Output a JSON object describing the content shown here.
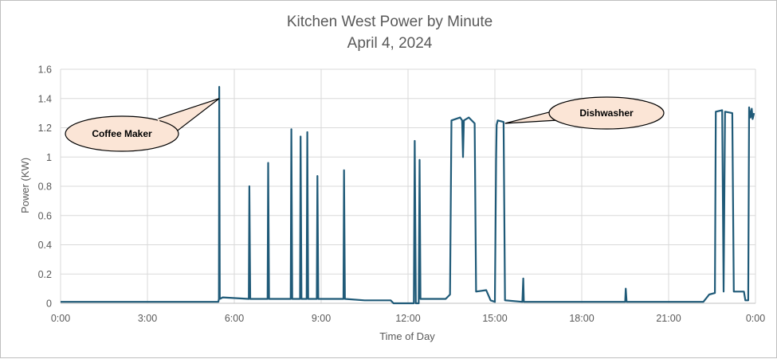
{
  "chart_data": {
    "type": "line",
    "title": "Kitchen West Power by Minute",
    "subtitle": "April 4, 2024",
    "xlabel": "Time of Day",
    "ylabel": "Power (KW)",
    "xlim": [
      0,
      24
    ],
    "ylim": [
      0,
      1.6
    ],
    "x_ticks": [
      0,
      3,
      6,
      9,
      12,
      15,
      18,
      21,
      24
    ],
    "x_tick_labels": [
      "0:00",
      "3:00",
      "6:00",
      "9:00",
      "12:00",
      "15:00",
      "18:00",
      "21:00",
      "0:00"
    ],
    "y_ticks": [
      0,
      0.2,
      0.4,
      0.6,
      0.8,
      1.0,
      1.2,
      1.4,
      1.6
    ],
    "y_tick_labels": [
      "0",
      "0.2",
      "0.4",
      "0.6",
      "0.8",
      "1",
      "1.2",
      "1.4",
      "1.6"
    ],
    "grid": true,
    "legend": "none",
    "series": [
      {
        "color": "#1f5a78",
        "points": [
          [
            0,
            0.01
          ],
          [
            5.45,
            0.01
          ],
          [
            5.47,
            0.03
          ],
          [
            5.48,
            1.48
          ],
          [
            5.5,
            0.03
          ],
          [
            5.6,
            0.04
          ],
          [
            6.5,
            0.03
          ],
          [
            6.52,
            0.8
          ],
          [
            6.55,
            0.03
          ],
          [
            7.15,
            0.03
          ],
          [
            7.17,
            0.96
          ],
          [
            7.2,
            0.03
          ],
          [
            7.95,
            0.03
          ],
          [
            7.97,
            1.19
          ],
          [
            8.0,
            0.03
          ],
          [
            8.27,
            0.03
          ],
          [
            8.29,
            1.14
          ],
          [
            8.32,
            0.03
          ],
          [
            8.5,
            0.03
          ],
          [
            8.52,
            1.17
          ],
          [
            8.55,
            0.03
          ],
          [
            8.85,
            0.03
          ],
          [
            8.87,
            0.87
          ],
          [
            8.9,
            0.03
          ],
          [
            9.77,
            0.03
          ],
          [
            9.79,
            0.91
          ],
          [
            9.82,
            0.03
          ],
          [
            10.5,
            0.02
          ],
          [
            11.4,
            0.02
          ],
          [
            11.5,
            0.0
          ],
          [
            12.2,
            0.0
          ],
          [
            12.23,
            1.11
          ],
          [
            12.27,
            0.0
          ],
          [
            12.37,
            0.0
          ],
          [
            12.4,
            0.98
          ],
          [
            12.43,
            0.03
          ],
          [
            13.3,
            0.03
          ],
          [
            13.45,
            0.06
          ],
          [
            13.5,
            1.25
          ],
          [
            13.8,
            1.27
          ],
          [
            13.87,
            1.25
          ],
          [
            13.9,
            1.0
          ],
          [
            13.93,
            1.25
          ],
          [
            14.1,
            1.27
          ],
          [
            14.3,
            1.23
          ],
          [
            14.35,
            0.08
          ],
          [
            14.7,
            0.09
          ],
          [
            14.85,
            0.02
          ],
          [
            15.0,
            0.01
          ],
          [
            15.04,
            0.97
          ],
          [
            15.06,
            1.22
          ],
          [
            15.1,
            1.25
          ],
          [
            15.3,
            1.24
          ],
          [
            15.35,
            0.02
          ],
          [
            15.95,
            0.01
          ],
          [
            15.98,
            0.17
          ],
          [
            16.0,
            0.01
          ],
          [
            19.5,
            0.01
          ],
          [
            19.52,
            0.1
          ],
          [
            19.55,
            0.01
          ],
          [
            22.2,
            0.01
          ],
          [
            22.4,
            0.06
          ],
          [
            22.6,
            0.07
          ],
          [
            22.63,
            1.31
          ],
          [
            22.85,
            1.32
          ],
          [
            22.9,
            0.08
          ],
          [
            22.95,
            1.31
          ],
          [
            23.2,
            1.3
          ],
          [
            23.25,
            0.08
          ],
          [
            23.6,
            0.08
          ],
          [
            23.65,
            0.02
          ],
          [
            23.75,
            0.02
          ],
          [
            23.78,
            1.34
          ],
          [
            23.83,
            1.27
          ],
          [
            23.87,
            1.33
          ],
          [
            23.9,
            1.26
          ],
          [
            23.95,
            1.3
          ]
        ]
      }
    ],
    "annotations": [
      {
        "text": "Coffee Maker",
        "x": 5.48,
        "y": 1.4,
        "color": "#fbe5d6"
      },
      {
        "text": "Dishwasher",
        "x": 15.35,
        "y": 1.23,
        "color": "#fbe5d6"
      }
    ],
    "colors": {
      "line": "#1f5a78",
      "grid": "#d9d9d9",
      "callout_fill": "#fbe5d6",
      "callout_stroke": "#000000"
    }
  }
}
